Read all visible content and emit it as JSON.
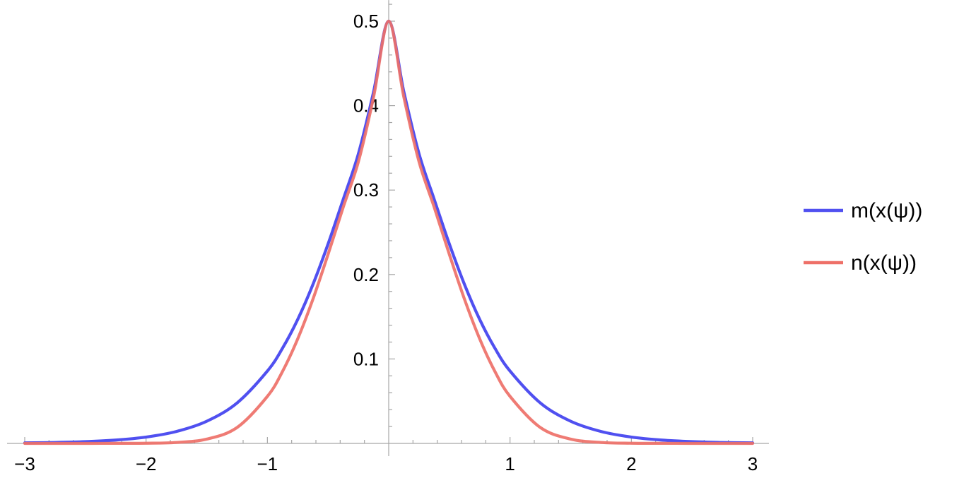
{
  "chart_data": {
    "type": "line",
    "title": "",
    "xlabel": "",
    "ylabel": "",
    "xlim": [
      -3,
      3
    ],
    "ylim": [
      0,
      0.52
    ],
    "x_ticks": [
      {
        "value": -3,
        "label": "−3"
      },
      {
        "value": -2,
        "label": "−2"
      },
      {
        "value": -1,
        "label": "−1"
      },
      {
        "value": 1,
        "label": "1"
      },
      {
        "value": 2,
        "label": "2"
      },
      {
        "value": 3,
        "label": "3"
      }
    ],
    "y_ticks": [
      {
        "value": 0.1,
        "label": "0.1"
      },
      {
        "value": 0.2,
        "label": "0.2"
      },
      {
        "value": 0.3,
        "label": "0.3"
      },
      {
        "value": 0.4,
        "label": "0.4"
      },
      {
        "value": 0.5,
        "label": "0.5"
      }
    ],
    "x_minor_step": 0.2,
    "y_minor_step": 0.02,
    "grid": false,
    "legend_placement": "right",
    "x": [
      -3.0,
      -2.75,
      -2.5,
      -2.25,
      -2.0,
      -1.75,
      -1.5,
      -1.25,
      -1.0,
      -0.875,
      -0.75,
      -0.625,
      -0.5,
      -0.375,
      -0.25,
      -0.125,
      0.0,
      0.125,
      0.25,
      0.375,
      0.5,
      0.625,
      0.75,
      0.875,
      1.0,
      1.25,
      1.5,
      1.75,
      2.0,
      2.25,
      2.5,
      2.75,
      3.0
    ],
    "series": [
      {
        "name": "m(x(ψ))",
        "color": "#5050f0",
        "values": [
          0.0006,
          0.0011,
          0.0021,
          0.004,
          0.0075,
          0.0141,
          0.0262,
          0.0479,
          0.0857,
          0.1128,
          0.1468,
          0.1881,
          0.2361,
          0.289,
          0.343,
          0.4162,
          0.5,
          0.4162,
          0.343,
          0.289,
          0.2361,
          0.1881,
          0.1468,
          0.1128,
          0.0857,
          0.0479,
          0.0262,
          0.0141,
          0.0075,
          0.004,
          0.0021,
          0.0011,
          0.0006
        ]
      },
      {
        "name": "n(x(ψ))",
        "color": "#ee7068",
        "values": [
          0.0,
          0.0,
          0.0,
          0.0001,
          0.0002,
          0.0011,
          0.0051,
          0.0188,
          0.0557,
          0.0853,
          0.1238,
          0.1706,
          0.2238,
          0.2797,
          0.3336,
          0.41,
          0.5,
          0.41,
          0.3336,
          0.2797,
          0.2238,
          0.1706,
          0.1238,
          0.0853,
          0.0557,
          0.0188,
          0.0051,
          0.0011,
          0.0002,
          0.0001,
          0.0,
          0.0,
          0.0
        ]
      }
    ]
  }
}
